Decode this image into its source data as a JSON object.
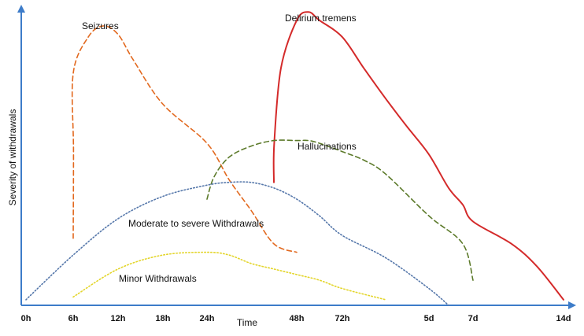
{
  "chart_data": {
    "type": "line",
    "xlabel": "Time",
    "ylabel": "Severity of withdrawals",
    "x_ticks": [
      "0h",
      "6h",
      "12h",
      "18h",
      "24h",
      "48h",
      "72h",
      "5d",
      "7d",
      "14d"
    ],
    "y_ticks": [],
    "grid": false,
    "legend": "none",
    "colors": {
      "axis": "#3d7cc9",
      "seizures": "#e2691f",
      "delirium": "#d42a2a",
      "hallucinations": "#5c7a2a",
      "moderate": "#5577aa",
      "minor": "#e3d52a"
    },
    "series": [
      {
        "name": "Seizures",
        "style": "dashed",
        "color_key": "seizures",
        "x": [
          "6h",
          "6h",
          "6h",
          "8h",
          "10h",
          "12h",
          "14h",
          "18h",
          "24h",
          "30h",
          "36h",
          "42h",
          "48h"
        ],
        "y": [
          0.24,
          0.55,
          0.83,
          0.96,
          1.0,
          0.97,
          0.88,
          0.72,
          0.58,
          0.45,
          0.34,
          0.22,
          0.19
        ]
      },
      {
        "name": "Delirium tremens",
        "style": "solid",
        "color_key": "delirium",
        "x": [
          "42h",
          "42h",
          "44h",
          "48h",
          "54h",
          "60h",
          "72h",
          "84h",
          "4d",
          "4.5d",
          "5d",
          "5.5d",
          "6d",
          "7d",
          "10d",
          "12d",
          "14d"
        ],
        "y": [
          0.44,
          0.58,
          0.85,
          1.02,
          1.05,
          1.02,
          0.96,
          0.85,
          0.74,
          0.64,
          0.54,
          0.42,
          0.36,
          0.3,
          0.22,
          0.14,
          0.02
        ]
      },
      {
        "name": "Hallucinations",
        "style": "dashed",
        "color_key": "hallucinations",
        "x": [
          "24h",
          "26h",
          "30h",
          "36h",
          "42h",
          "48h",
          "54h",
          "60h",
          "72h",
          "84h",
          "4d",
          "5d",
          "6d",
          "7d"
        ],
        "y": [
          0.38,
          0.46,
          0.53,
          0.57,
          0.59,
          0.59,
          0.59,
          0.58,
          0.55,
          0.52,
          0.47,
          0.32,
          0.22,
          0.09
        ]
      },
      {
        "name": "Moderate to severe Withdrawals",
        "style": "dotted",
        "color_key": "moderate",
        "x": [
          "0h",
          "6h",
          "12h",
          "18h",
          "24h",
          "30h",
          "36h",
          "42h",
          "48h",
          "60h",
          "72h",
          "4d",
          "5d",
          "5.5d"
        ],
        "y": [
          0.02,
          0.18,
          0.31,
          0.39,
          0.43,
          0.44,
          0.44,
          0.42,
          0.38,
          0.32,
          0.25,
          0.17,
          0.06,
          0.0
        ]
      },
      {
        "name": "Minor Withdrawals",
        "style": "dotted",
        "color_key": "minor",
        "x": [
          "6h",
          "12h",
          "18h",
          "24h",
          "30h",
          "36h",
          "42h",
          "48h",
          "60h",
          "72h",
          "4d"
        ],
        "y": [
          0.03,
          0.13,
          0.18,
          0.19,
          0.18,
          0.15,
          0.13,
          0.11,
          0.09,
          0.06,
          0.02
        ]
      }
    ]
  }
}
